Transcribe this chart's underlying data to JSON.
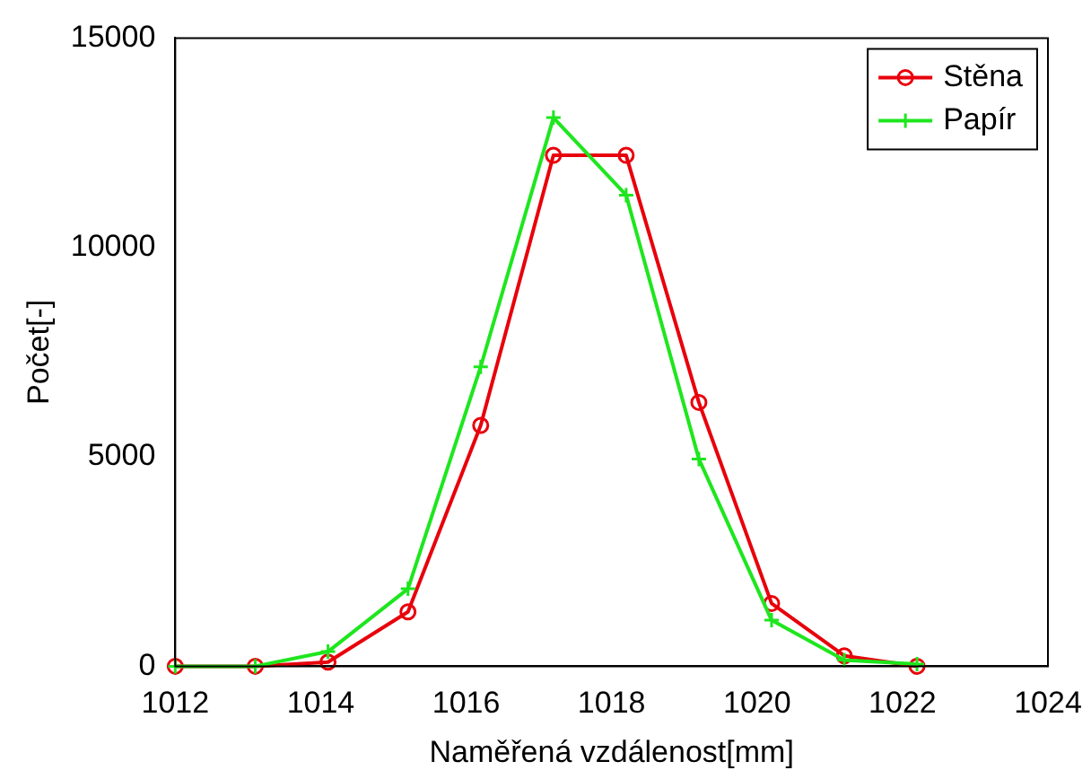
{
  "chart_data": {
    "type": "line",
    "xlabel": "Naměřená vzdálenost[mm]",
    "ylabel": "Počet[-]",
    "xlim": [
      1012,
      1024
    ],
    "xticks": [
      1012,
      1014,
      1016,
      1018,
      1020,
      1022,
      1024
    ],
    "ylim": [
      0,
      15000
    ],
    "yticks": [
      0,
      5000,
      10000,
      15000
    ],
    "grid": false,
    "legend": "top right",
    "line_style": "solid",
    "series": [
      {
        "name": "Stěna",
        "color": "#e8000b",
        "marker": "circle",
        "x": [
          1012,
          1013.1,
          1014.1,
          1015.2,
          1016.2,
          1017.2,
          1018.2,
          1019.2,
          1020.2,
          1021.2,
          1022.2
        ],
        "values": [
          0,
          0,
          100,
          1300,
          5750,
          12200,
          12200,
          6300,
          1500,
          250,
          0
        ]
      },
      {
        "name": "Papír",
        "color": "#1ee61e",
        "marker": "cross",
        "x": [
          1012,
          1013.1,
          1014.1,
          1015.2,
          1016.2,
          1017.2,
          1018.2,
          1019.2,
          1020.2,
          1021.2,
          1022.2
        ],
        "values": [
          0,
          0,
          350,
          1850,
          7150,
          13100,
          11250,
          4950,
          1100,
          150,
          50
        ]
      }
    ]
  }
}
